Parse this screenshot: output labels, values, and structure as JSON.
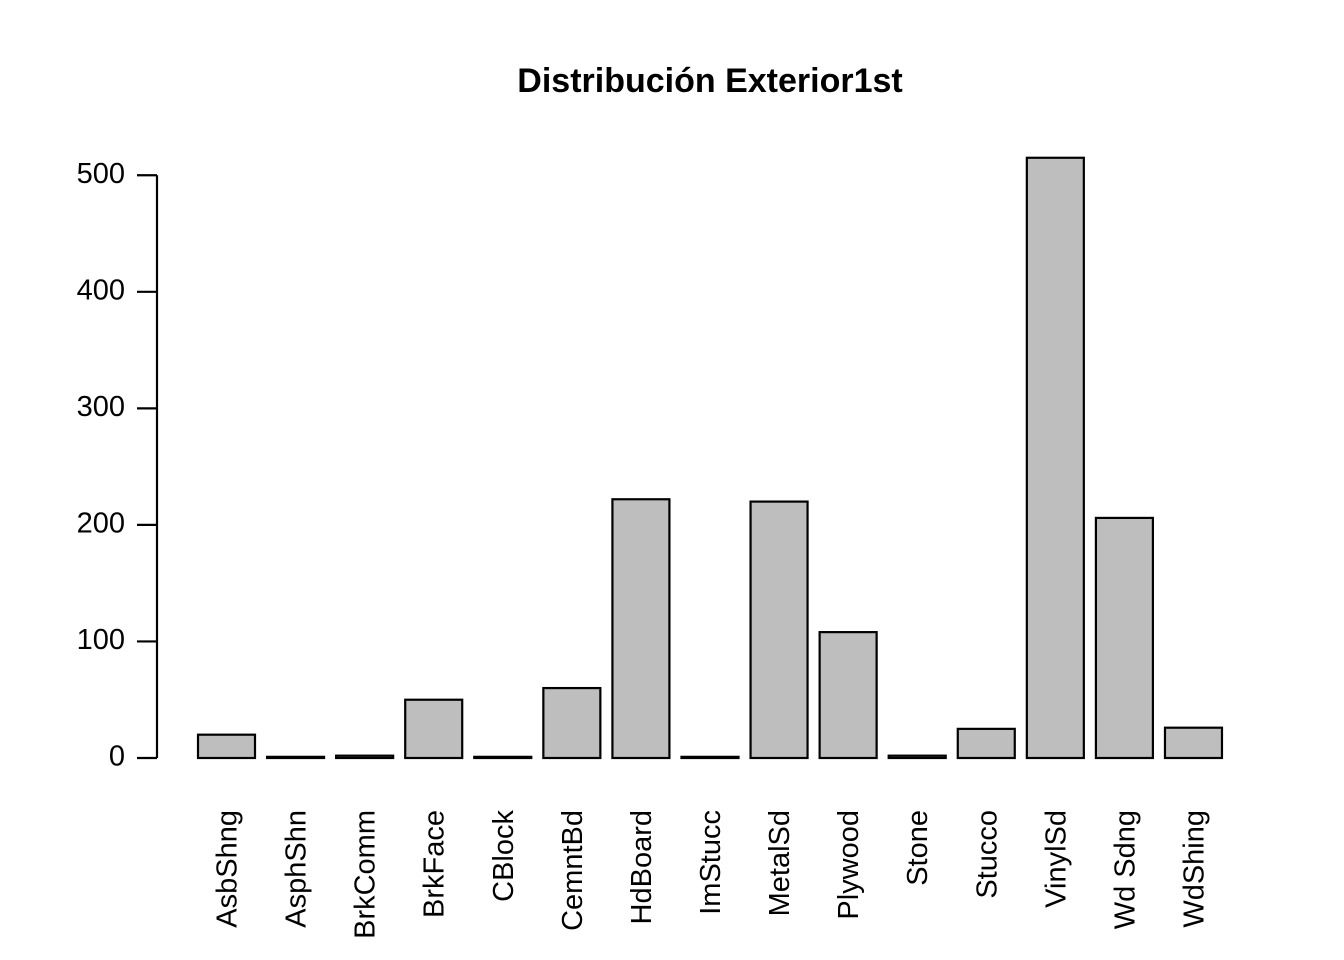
{
  "chart_data": {
    "type": "bar",
    "title": "Distribución Exterior1st",
    "xlabel": "",
    "ylabel": "",
    "categories": [
      "AsbShng",
      "AsphShn",
      "BrkComm",
      "BrkFace",
      "CBlock",
      "CemntBd",
      "HdBoard",
      "ImStucc",
      "MetalSd",
      "Plywood",
      "Stone",
      "Stucco",
      "VinylSd",
      "Wd Sdng",
      "WdShing"
    ],
    "values": [
      20,
      1,
      2,
      50,
      1,
      60,
      222,
      1,
      220,
      108,
      2,
      25,
      515,
      206,
      26
    ],
    "ylim": [
      0,
      515
    ],
    "yticks": [
      0,
      100,
      200,
      300,
      400,
      500
    ],
    "ytick_labels": [
      "0",
      "100",
      "200",
      "300",
      "400",
      "500"
    ],
    "grid": false,
    "legend": "none",
    "bar_color": "#bebebe",
    "bar_edge_color": "#000000"
  }
}
